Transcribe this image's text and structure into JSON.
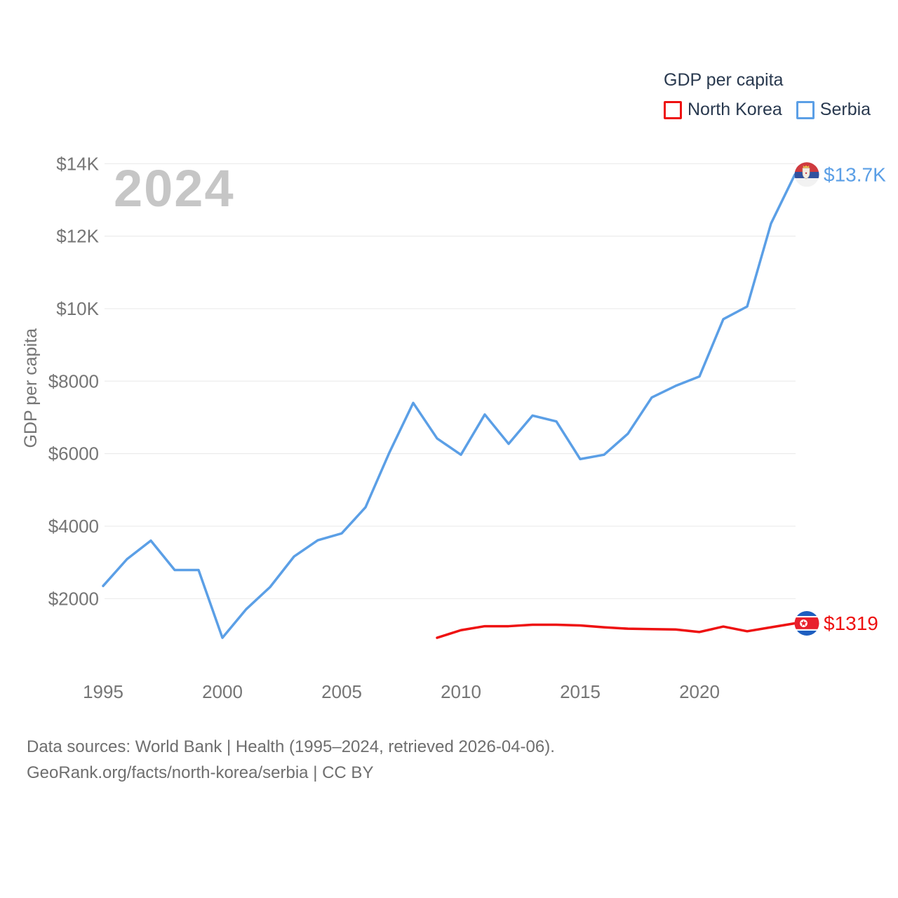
{
  "legend": {
    "title": "GDP per capita",
    "items": [
      {
        "label": "North Korea",
        "color": "#ee1111",
        "icon": "north-korea-flag-icon"
      },
      {
        "label": "Serbia",
        "color": "#5b9fe6",
        "icon": "serbia-flag-icon"
      }
    ]
  },
  "watermark": "2024",
  "chart_data": {
    "type": "line",
    "title": "GDP per capita",
    "xlabel": "",
    "ylabel": "GDP per capita",
    "grid": "horizontal",
    "legend_position": "top-right",
    "x_range": [
      1995,
      2024
    ],
    "ylim": [
      0,
      14800
    ],
    "x_ticks": [
      "1995",
      "2000",
      "2005",
      "2010",
      "2015",
      "2020"
    ],
    "y_ticks": [
      {
        "value": 2000,
        "label": "$2000"
      },
      {
        "value": 4000,
        "label": "$4000"
      },
      {
        "value": 6000,
        "label": "$6000"
      },
      {
        "value": 8000,
        "label": "$8000"
      },
      {
        "value": 10000,
        "label": "$10K"
      },
      {
        "value": 12000,
        "label": "$12K"
      },
      {
        "value": 14000,
        "label": "$14K"
      }
    ],
    "series": [
      {
        "name": "Serbia",
        "color": "#5b9fe6",
        "flag": "serbia",
        "end_label": "$13.7K",
        "start_year": 1995,
        "years": [
          1995,
          1996,
          1997,
          1998,
          1999,
          2000,
          2001,
          2002,
          2003,
          2004,
          2005,
          2006,
          2007,
          2008,
          2009,
          2010,
          2011,
          2012,
          2013,
          2014,
          2015,
          2016,
          2017,
          2018,
          2019,
          2020,
          2021,
          2022,
          2023,
          2024
        ],
        "values": [
          2350,
          3090,
          3600,
          2790,
          2790,
          920,
          1710,
          2320,
          3160,
          3610,
          3800,
          4520,
          6030,
          7400,
          6420,
          5970,
          7080,
          6270,
          7050,
          6890,
          5850,
          5970,
          6550,
          7550,
          7870,
          8130,
          9710,
          10060,
          12350,
          13700
        ]
      },
      {
        "name": "North Korea",
        "color": "#ee1111",
        "flag": "north-korea",
        "end_label": "$1319",
        "start_year": 2009,
        "years": [
          2009,
          2010,
          2011,
          2012,
          2013,
          2014,
          2015,
          2016,
          2017,
          2018,
          2019,
          2020,
          2021,
          2022,
          2023,
          2024
        ],
        "values": [
          920,
          1130,
          1240,
          1240,
          1280,
          1280,
          1260,
          1210,
          1170,
          1160,
          1150,
          1080,
          1230,
          1100,
          1210,
          1319
        ]
      }
    ]
  },
  "footer": {
    "line1": "Data sources: World Bank | Health (1995–2024, retrieved 2026-04-06).",
    "line2": "GeoRank.org/facts/north-korea/serbia | CC BY"
  }
}
